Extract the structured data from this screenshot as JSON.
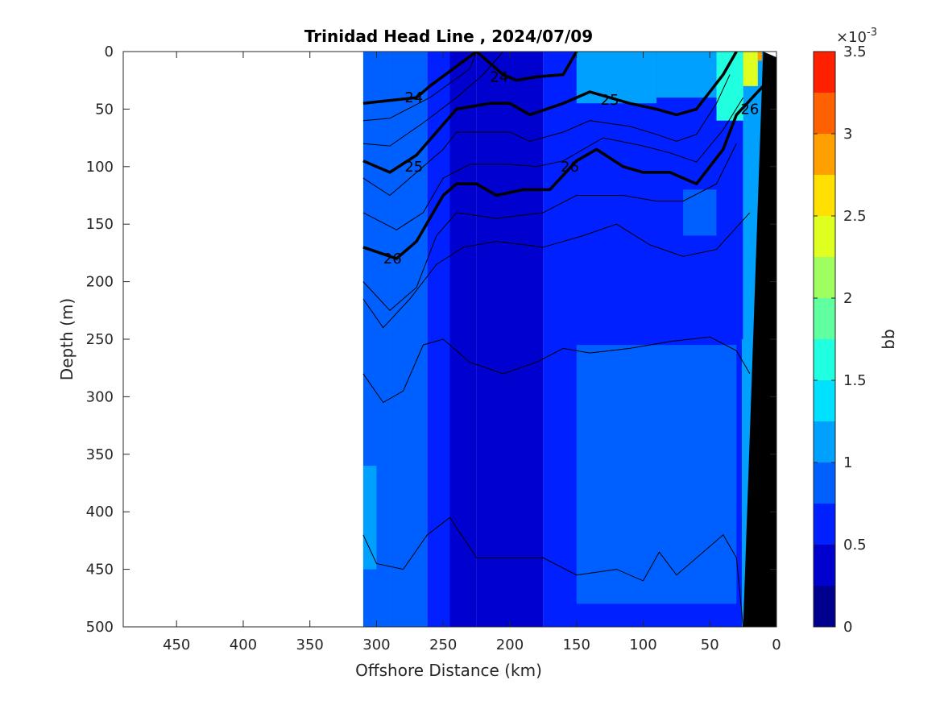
{
  "chart_data": {
    "type": "heatmap",
    "title": "Trinidad Head Line , 2024/07/09",
    "xlabel": "Offshore Distance (km)",
    "ylabel": "Depth (m)",
    "xlim": [
      490,
      0
    ],
    "ylim": [
      500,
      0
    ],
    "xticks": [
      450,
      400,
      350,
      300,
      250,
      200,
      150,
      100,
      50,
      0
    ],
    "yticks": [
      0,
      50,
      100,
      150,
      200,
      250,
      300,
      350,
      400,
      450,
      500
    ],
    "data_extent_x_km": [
      310,
      0
    ],
    "colorbar": {
      "label": "bb",
      "exponent_label": "×10",
      "exponent_power": "-3",
      "ticks": [
        "0",
        "0.5",
        "1",
        "1.5",
        "2",
        "2.5",
        "3",
        "3.5"
      ],
      "tick_values": [
        0,
        0.5,
        1,
        1.5,
        2,
        2.5,
        3,
        3.5
      ],
      "levels": [
        0,
        0.25,
        0.5,
        0.75,
        1,
        1.25,
        1.5,
        1.75,
        2,
        2.25,
        2.5,
        2.75,
        3,
        3.25,
        3.5
      ],
      "colors": [
        "#00008f",
        "#0000cf",
        "#0020ff",
        "#0060ff",
        "#00a0ff",
        "#00e0ff",
        "#20ffdf",
        "#60ff9f",
        "#9fff60",
        "#dfff20",
        "#ffe000",
        "#ffa000",
        "#ff6000",
        "#ff2000",
        "#cf0000"
      ]
    },
    "field_regions": [
      {
        "x": [
          310,
          290
        ],
        "y": [
          0,
          500
        ],
        "value": 0.9
      },
      {
        "x": [
          290,
          262
        ],
        "y": [
          0,
          500
        ],
        "value": 0.8
      },
      {
        "x": [
          262,
          245
        ],
        "y": [
          0,
          500
        ],
        "value": 0.55
      },
      {
        "x": [
          245,
          225
        ],
        "y": [
          0,
          500
        ],
        "value": 0.3
      },
      {
        "x": [
          225,
          175
        ],
        "y": [
          0,
          500
        ],
        "value": 0.45
      },
      {
        "x": [
          175,
          25
        ],
        "y": [
          0,
          500
        ],
        "value": 0.65
      },
      {
        "x": [
          25,
          10
        ],
        "y": [
          0,
          500
        ],
        "value": 0.95
      }
    ],
    "field_patches": [
      {
        "x": [
          150,
          30
        ],
        "y": [
          255,
          480
        ],
        "value": 0.85
      },
      {
        "x": [
          70,
          45
        ],
        "y": [
          120,
          160
        ],
        "value": 0.85
      },
      {
        "x": [
          150,
          90
        ],
        "y": [
          0,
          45
        ],
        "value": 1.05
      },
      {
        "x": [
          90,
          45
        ],
        "y": [
          0,
          40
        ],
        "value": 1.15
      },
      {
        "x": [
          45,
          25
        ],
        "y": [
          0,
          60
        ],
        "value": 1.5
      },
      {
        "x": [
          25,
          14
        ],
        "y": [
          0,
          30
        ],
        "value": 2.2
      },
      {
        "x": [
          14,
          11
        ],
        "y": [
          0,
          8
        ],
        "value": 2.8
      },
      {
        "x": [
          26,
          15
        ],
        "y": [
          250,
          500
        ],
        "value": 1.1
      },
      {
        "x": [
          310,
          300
        ],
        "y": [
          360,
          450
        ],
        "value": 1.1
      }
    ],
    "bottom_topography": [
      [
        10,
        0
      ],
      [
        0,
        5
      ],
      [
        0,
        500
      ],
      [
        25,
        500
      ]
    ],
    "bold_isopycnals": [
      {
        "label": "24",
        "x": [
          310,
          270,
          260,
          225,
          205,
          195,
          180,
          160,
          150
        ],
        "y": [
          45,
          40,
          30,
          0,
          20,
          25,
          22,
          20,
          0
        ]
      },
      {
        "label": "25",
        "x": [
          310,
          290,
          270,
          255,
          240,
          215,
          200,
          185,
          160,
          140,
          110,
          90,
          75,
          60,
          40,
          30
        ],
        "y": [
          95,
          105,
          90,
          70,
          50,
          45,
          45,
          55,
          45,
          35,
          45,
          50,
          55,
          50,
          20,
          0
        ]
      },
      {
        "label": "26",
        "x": [
          310,
          285,
          270,
          250,
          240,
          225,
          210,
          190,
          170,
          150,
          135,
          115,
          100,
          80,
          60,
          40,
          30,
          10
        ],
        "y": [
          170,
          180,
          165,
          125,
          115,
          115,
          125,
          120,
          120,
          95,
          85,
          100,
          105,
          105,
          115,
          85,
          55,
          30
        ]
      }
    ],
    "contour_labels": [
      {
        "text": "24",
        "x": 272,
        "y": 40
      },
      {
        "text": "24",
        "x": 208,
        "y": 22
      },
      {
        "text": "25",
        "x": 272,
        "y": 100
      },
      {
        "text": "25",
        "x": 125,
        "y": 42
      },
      {
        "text": "26",
        "x": 288,
        "y": 180
      },
      {
        "text": "26",
        "x": 155,
        "y": 100
      },
      {
        "text": "26",
        "x": 20,
        "y": 50
      }
    ],
    "thin_isopycnals": [
      {
        "x": [
          310,
          290,
          260,
          230,
          225
        ],
        "y": [
          60,
          58,
          40,
          15,
          0
        ]
      },
      {
        "x": [
          310,
          290,
          265,
          240,
          220,
          205
        ],
        "y": [
          80,
          82,
          62,
          40,
          20,
          0
        ]
      },
      {
        "x": [
          310,
          290,
          275,
          250,
          240,
          215,
          200,
          185,
          160,
          140,
          110,
          90,
          75,
          60,
          45,
          35
        ],
        "y": [
          110,
          125,
          110,
          85,
          70,
          70,
          70,
          78,
          70,
          60,
          65,
          72,
          78,
          72,
          45,
          20
        ]
      },
      {
        "x": [
          310,
          285,
          265,
          250,
          230,
          200,
          180,
          160,
          130,
          100,
          80,
          60,
          40,
          25
        ],
        "y": [
          140,
          155,
          140,
          110,
          98,
          98,
          100,
          95,
          75,
          82,
          88,
          96,
          68,
          40
        ]
      },
      {
        "x": [
          310,
          290,
          270,
          255,
          240,
          210,
          175,
          150,
          115,
          90,
          70,
          45,
          30
        ],
        "y": [
          200,
          225,
          205,
          160,
          140,
          145,
          140,
          125,
          125,
          130,
          130,
          115,
          80
        ]
      },
      {
        "x": [
          310,
          295,
          275,
          255,
          235,
          210,
          175,
          145,
          120,
          95,
          70,
          45,
          20
        ],
        "y": [
          215,
          240,
          215,
          185,
          170,
          165,
          170,
          160,
          150,
          168,
          178,
          172,
          140
        ]
      },
      {
        "x": [
          310,
          295,
          280,
          265,
          250,
          230,
          205,
          180,
          160,
          140,
          110,
          80,
          50,
          30,
          20
        ],
        "y": [
          280,
          305,
          295,
          255,
          250,
          270,
          280,
          270,
          258,
          262,
          258,
          252,
          248,
          260,
          280
        ]
      },
      {
        "x": [
          310,
          300,
          280,
          262,
          245,
          225,
          200,
          175,
          150,
          120,
          100,
          88,
          75,
          55,
          40,
          30,
          25
        ],
        "y": [
          420,
          445,
          450,
          420,
          405,
          440,
          440,
          440,
          455,
          450,
          460,
          435,
          455,
          435,
          420,
          440,
          500
        ]
      }
    ]
  }
}
